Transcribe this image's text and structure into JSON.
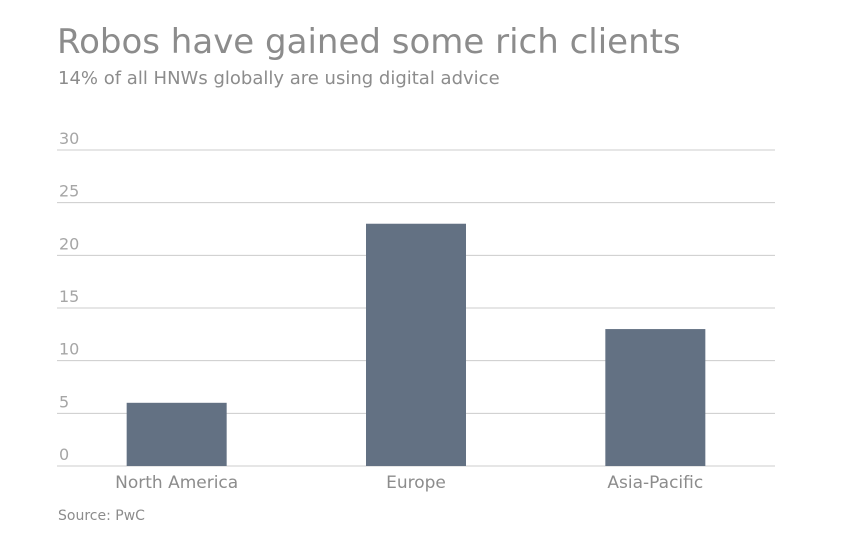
{
  "title": "Robos have gained some rich clients",
  "subtitle": "14% of all HNWs globally are using digital advice",
  "source": "Source: PwC",
  "colors": {
    "bar": "#637183",
    "grid": "#cccccc",
    "text": "#8c8c8c"
  },
  "chart_data": {
    "type": "bar",
    "categories": [
      "North America",
      "Europe",
      "Asia-Pacific"
    ],
    "values": [
      6,
      23,
      13
    ],
    "yticks": [
      0,
      5,
      10,
      15,
      20,
      25,
      30
    ],
    "ylim": [
      0,
      30
    ],
    "grid": true,
    "legend": "none"
  }
}
